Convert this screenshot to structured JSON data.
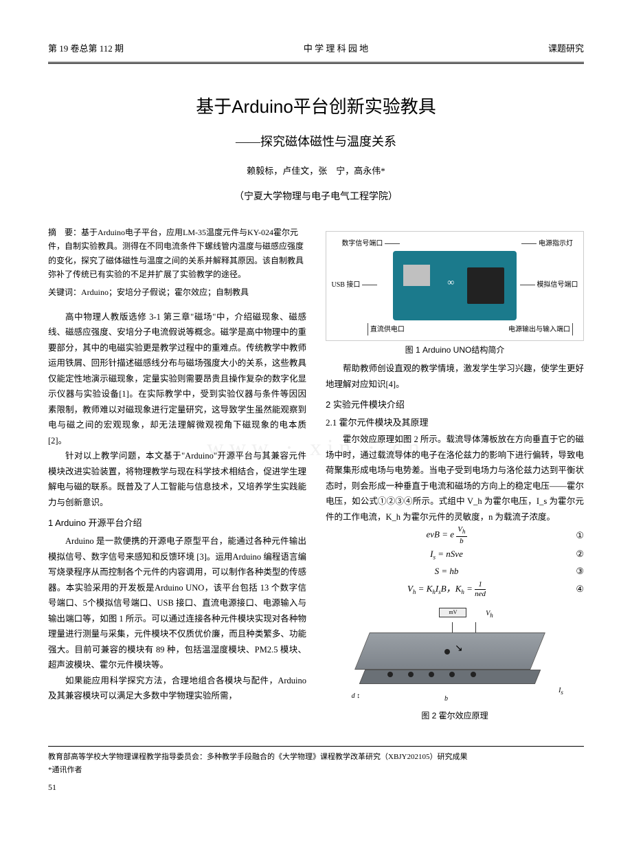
{
  "header": {
    "left": "第 19 卷总第 112 期",
    "center": "中 学 理 科 园 地",
    "right": "课题研究"
  },
  "title": "基于Arduino平台创新实验教具",
  "subtitle": "——探究磁体磁性与温度关系",
  "authors": "赖毅标，卢佳文，张　宁，高永伟*",
  "affiliation": "（宁夏大学物理与电子电气工程学院）",
  "abstract": {
    "label": "摘　要：",
    "text": "基于Arduino电子平台，应用LM-35温度元件与KY-024霍尔元件，自制实验教具。测得在不同电流条件下螺线管内温度与磁感应强度的变化，探究了磁体磁性与温度之间的关系并解释其原因。该自制教具弥补了传统已有实验的不足并扩展了实验教学的途径。"
  },
  "keywords": {
    "label": "关键词：",
    "text": "Arduino；安培分子假说；霍尔效应；自制教具"
  },
  "left_paras": [
    "高中物理人教版选修 3-1 第三章\"磁场\"中，介绍磁现象、磁感线、磁感应强度、安培分子电流假说等概念。磁学是高中物理中的重要部分，其中的电磁实验更是教学过程中的重难点。传统教学中教师运用铁屑、回形针描述磁感线分布与磁场强度大小的关系，这些教具仅能定性地演示磁现象，定量实验则需要昂贵且操作复杂的数字化显示仪器与实验设备[1]。在实际教学中，受到实验仪器与条件等因因素限制，教师难以对磁现象进行定量研究，这导致学生虽然能观察到电与磁之间的宏观现象，却无法理解微观视角下磁现象的电本质[2]。",
    "针对以上教学问题，本文基于\"Arduino\"开源平台与其兼容元件模块改进实验装置，将物理教学与现在科学技术相结合，促进学生理解电与磁的联系。既普及了人工智能与信息技术，又培养学生实践能力与创新意识。"
  ],
  "sec1_title": "1 Arduino 开源平台介绍",
  "sec1_paras": [
    "Arduino 是一款便携的开源电子原型平台，能通过各种元件输出模拟信号、数字信号来感知和反馈环境 [3]。运用Arduino 编程语言编写烧录程序从而控制各个元件的内容调用，可以制作各种类型的传感器。本实验采用的开发板是Arduino UNO，该平台包括 13 个数字信号端口、5个模拟信号端口、USB 接口、直流电源接口、电源输入与输出端口等，如图 1 所示。可以通过连接各种元件模块实现对各种物理量进行测量与采集，元件模块不仅质优价廉，而且种类繁多、功能强大。目前可兼容的模块有 89 种，包括温湿度模块、PM2.5 模块、超声波模块、霍尔元件模块等。",
    "如果能应用科学探究方法，合理地组合各模块与配件，Arduino 及其兼容模块可以满足大多数中学物理实验所需，"
  ],
  "fig1": {
    "caption": "图 1  Arduino UNO结构简介",
    "labels": {
      "digital_port": "数字信号端口",
      "power_led": "电源指示灯",
      "analog_port": "模拟信号端口",
      "usb": "USB 接口",
      "dc_in": "直流供电口",
      "power_io": "电源输出与输入端口"
    },
    "board_color": "#1b7a8c",
    "chip_color": "#222222",
    "connector_color": "#c0c0c0"
  },
  "right_intro": "帮助教师创设直观的教学情境，激发学生学习兴趣，使学生更好地理解对应知识[4]。",
  "sec2_title": "2  实验元件模块介绍",
  "sec2_1_title": "2.1  霍尔元件模块及其原理",
  "sec2_1_para": "霍尔效应原理如图 2 所示。载流导体薄板放在方向垂直于它的磁场中时，通过载流导体的电子在洛伦兹力的影响下进行偏转，导致电荷聚集形成电场与电势差。当电子受到电场力与洛伦兹力达到平衡状态时，则会形成一种垂直于电流和磁场的方向上的稳定电压——霍尔电压，如公式①②③④所示。式组中 V_h 为霍尔电压，I_s 为霍尔元件的工作电流，K_h 为霍尔元件的灵敏度，n 为载流子浓度。",
  "equations": [
    {
      "center_html": "<i>evB</i> = <i>e</i> <span class='frac'><span class='n'>V<span class='sub'>h</span></span><span class='d'>b</span></span>",
      "num": "①"
    },
    {
      "center_html": "<i>I</i><span class='sub'>s</span> = <i>nSve</i>",
      "num": "②"
    },
    {
      "center_html": "<i>S</i> = <i>hb</i>",
      "num": "③"
    },
    {
      "center_html": "<i>V</i><span class='sub'>h</span> = <i>K</i><span class='sub'>h</span><i>I</i><span class='sub'>s</span><i>B</i>，<i>K</i><span class='sub'>h</span> = <span class='frac'><span class='n'>1</span><span class='d'>ned</span></span>",
      "num": "④"
    }
  ],
  "fig2": {
    "caption": "图 2  霍尔效应原理",
    "meter_label": "mV",
    "slab_color_top": "#9aa0a6",
    "slab_color_side": "#6a7076"
  },
  "footer": {
    "note": "教育部高等学校大学物理课程教学指导委员会：多种教学手段融合的《大学物理》课程教学改革研究（XBJY202105）研究成果",
    "corr": "*通讯作者"
  },
  "page_num": "51",
  "watermark": "www · xin · cn"
}
